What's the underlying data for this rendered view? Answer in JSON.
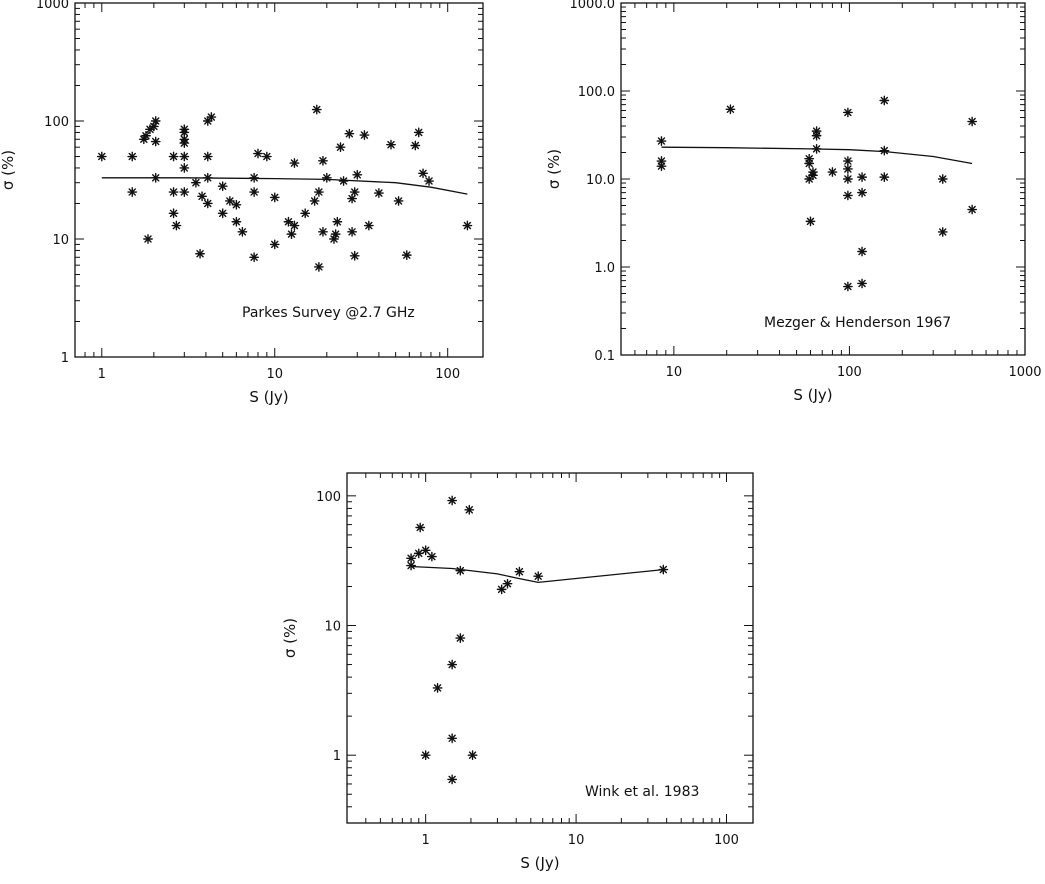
{
  "chart_data": [
    {
      "type": "scatter",
      "xlabel": "S (Jy)",
      "ylabel": "σ (%)",
      "xscale": "log",
      "yscale": "log",
      "xlim": [
        0.7,
        160
      ],
      "ylim": [
        1,
        1000
      ],
      "x_ticks": [
        "1",
        "10",
        "100"
      ],
      "y_ticks": [
        "1",
        "10",
        "100",
        "1000"
      ],
      "annotation": "Parkes Survey @2.7 GHz",
      "points": [
        {
          "x": 1.0,
          "y": 50
        },
        {
          "x": 1.5,
          "y": 50
        },
        {
          "x": 1.5,
          "y": 25
        },
        {
          "x": 1.75,
          "y": 70
        },
        {
          "x": 1.8,
          "y": 75
        },
        {
          "x": 1.85,
          "y": 10
        },
        {
          "x": 1.9,
          "y": 85
        },
        {
          "x": 2.0,
          "y": 90
        },
        {
          "x": 2.05,
          "y": 100
        },
        {
          "x": 2.05,
          "y": 67
        },
        {
          "x": 2.05,
          "y": 33
        },
        {
          "x": 2.6,
          "y": 50
        },
        {
          "x": 2.6,
          "y": 25
        },
        {
          "x": 2.6,
          "y": 16.5
        },
        {
          "x": 2.7,
          "y": 13
        },
        {
          "x": 3.0,
          "y": 85
        },
        {
          "x": 3.0,
          "y": 80
        },
        {
          "x": 3.0,
          "y": 70
        },
        {
          "x": 3.0,
          "y": 65
        },
        {
          "x": 3.0,
          "y": 50
        },
        {
          "x": 3.0,
          "y": 40
        },
        {
          "x": 3.0,
          "y": 25
        },
        {
          "x": 3.5,
          "y": 30
        },
        {
          "x": 3.7,
          "y": 7.5
        },
        {
          "x": 3.8,
          "y": 23
        },
        {
          "x": 4.1,
          "y": 100
        },
        {
          "x": 4.3,
          "y": 108
        },
        {
          "x": 4.1,
          "y": 50
        },
        {
          "x": 4.1,
          "y": 33
        },
        {
          "x": 4.1,
          "y": 20
        },
        {
          "x": 5.0,
          "y": 28
        },
        {
          "x": 5.0,
          "y": 16.5
        },
        {
          "x": 5.5,
          "y": 21
        },
        {
          "x": 6.0,
          "y": 19.5
        },
        {
          "x": 6.0,
          "y": 14
        },
        {
          "x": 6.5,
          "y": 11.5
        },
        {
          "x": 7.6,
          "y": 7
        },
        {
          "x": 7.6,
          "y": 33
        },
        {
          "x": 7.6,
          "y": 25
        },
        {
          "x": 8.0,
          "y": 53
        },
        {
          "x": 9.0,
          "y": 50
        },
        {
          "x": 10.0,
          "y": 22.5
        },
        {
          "x": 10.0,
          "y": 9
        },
        {
          "x": 12.0,
          "y": 14
        },
        {
          "x": 12.5,
          "y": 11
        },
        {
          "x": 13.0,
          "y": 44
        },
        {
          "x": 13.0,
          "y": 13
        },
        {
          "x": 15.0,
          "y": 16.5
        },
        {
          "x": 17.0,
          "y": 21
        },
        {
          "x": 17.5,
          "y": 125
        },
        {
          "x": 18.0,
          "y": 25
        },
        {
          "x": 18.0,
          "y": 5.8
        },
        {
          "x": 19.0,
          "y": 46
        },
        {
          "x": 19.0,
          "y": 11.5
        },
        {
          "x": 20.0,
          "y": 33
        },
        {
          "x": 22.0,
          "y": 10
        },
        {
          "x": 22.5,
          "y": 11
        },
        {
          "x": 23.0,
          "y": 14
        },
        {
          "x": 24.0,
          "y": 60
        },
        {
          "x": 25.0,
          "y": 31
        },
        {
          "x": 27.0,
          "y": 78
        },
        {
          "x": 28.0,
          "y": 22
        },
        {
          "x": 28.0,
          "y": 11.5
        },
        {
          "x": 29.0,
          "y": 25
        },
        {
          "x": 29.0,
          "y": 7.2
        },
        {
          "x": 30.0,
          "y": 35
        },
        {
          "x": 33.0,
          "y": 76
        },
        {
          "x": 35.0,
          "y": 13
        },
        {
          "x": 40.0,
          "y": 24.5
        },
        {
          "x": 47.0,
          "y": 63
        },
        {
          "x": 52.0,
          "y": 21
        },
        {
          "x": 58.0,
          "y": 7.3
        },
        {
          "x": 65.0,
          "y": 62
        },
        {
          "x": 68.0,
          "y": 80
        },
        {
          "x": 72.0,
          "y": 36
        },
        {
          "x": 78.0,
          "y": 31
        },
        {
          "x": 130.0,
          "y": 13
        }
      ],
      "trend": [
        {
          "x": 1.0,
          "y": 33
        },
        {
          "x": 3.0,
          "y": 33
        },
        {
          "x": 10.0,
          "y": 32.5
        },
        {
          "x": 20.0,
          "y": 32
        },
        {
          "x": 50.0,
          "y": 30
        },
        {
          "x": 80.0,
          "y": 27.5
        },
        {
          "x": 130.0,
          "y": 24
        }
      ]
    },
    {
      "type": "scatter",
      "xlabel": "S (Jy)",
      "ylabel": "σ (%)",
      "xscale": "log",
      "yscale": "log",
      "xlim": [
        5,
        1000
      ],
      "ylim": [
        0.1,
        1000
      ],
      "x_ticks": [
        "10",
        "100",
        "1000"
      ],
      "y_ticks": [
        "0.1",
        "1.0",
        "10.0",
        "100.0",
        "1000.0"
      ],
      "annotation": "Mezger & Henderson 1967",
      "points": [
        {
          "x": 8.5,
          "y": 27
        },
        {
          "x": 8.5,
          "y": 16
        },
        {
          "x": 8.5,
          "y": 14
        },
        {
          "x": 21,
          "y": 62
        },
        {
          "x": 59,
          "y": 17
        },
        {
          "x": 59,
          "y": 15
        },
        {
          "x": 59,
          "y": 10
        },
        {
          "x": 60,
          "y": 3.3
        },
        {
          "x": 62,
          "y": 11
        },
        {
          "x": 62,
          "y": 12
        },
        {
          "x": 65,
          "y": 35
        },
        {
          "x": 65,
          "y": 31
        },
        {
          "x": 65,
          "y": 22
        },
        {
          "x": 80,
          "y": 12
        },
        {
          "x": 98,
          "y": 57
        },
        {
          "x": 98,
          "y": 16
        },
        {
          "x": 98,
          "y": 13
        },
        {
          "x": 98,
          "y": 10
        },
        {
          "x": 98,
          "y": 6.5
        },
        {
          "x": 98,
          "y": 0.6
        },
        {
          "x": 118,
          "y": 10.5
        },
        {
          "x": 118,
          "y": 7
        },
        {
          "x": 118,
          "y": 1.5
        },
        {
          "x": 118,
          "y": 0.65
        },
        {
          "x": 158,
          "y": 78
        },
        {
          "x": 158,
          "y": 21
        },
        {
          "x": 158,
          "y": 10.5
        },
        {
          "x": 340,
          "y": 10
        },
        {
          "x": 340,
          "y": 2.5
        },
        {
          "x": 500,
          "y": 45
        },
        {
          "x": 500,
          "y": 4.5
        }
      ],
      "trend": [
        {
          "x": 8.5,
          "y": 23
        },
        {
          "x": 20,
          "y": 22.7
        },
        {
          "x": 60,
          "y": 22
        },
        {
          "x": 100,
          "y": 21.5
        },
        {
          "x": 160,
          "y": 20.5
        },
        {
          "x": 300,
          "y": 18
        },
        {
          "x": 500,
          "y": 15
        }
      ]
    },
    {
      "type": "scatter",
      "xlabel": "S (Jy)",
      "ylabel": "σ (%)",
      "xscale": "log",
      "yscale": "log",
      "xlim": [
        0.3,
        150
      ],
      "ylim": [
        0.3,
        150
      ],
      "x_ticks": [
        "1",
        "10",
        "100"
      ],
      "y_ticks": [
        "1",
        "10",
        "100"
      ],
      "annotation": "Wink et al. 1983",
      "points": [
        {
          "x": 0.8,
          "y": 33
        },
        {
          "x": 0.8,
          "y": 29
        },
        {
          "x": 0.9,
          "y": 36
        },
        {
          "x": 0.92,
          "y": 57
        },
        {
          "x": 1.0,
          "y": 38
        },
        {
          "x": 1.1,
          "y": 34
        },
        {
          "x": 1.0,
          "y": 1.0
        },
        {
          "x": 1.2,
          "y": 3.3
        },
        {
          "x": 1.5,
          "y": 92
        },
        {
          "x": 1.5,
          "y": 5
        },
        {
          "x": 1.5,
          "y": 1.35
        },
        {
          "x": 1.5,
          "y": 0.65
        },
        {
          "x": 1.7,
          "y": 8
        },
        {
          "x": 1.7,
          "y": 26.5
        },
        {
          "x": 1.95,
          "y": 78
        },
        {
          "x": 2.05,
          "y": 1.0
        },
        {
          "x": 3.2,
          "y": 19
        },
        {
          "x": 3.5,
          "y": 21
        },
        {
          "x": 4.2,
          "y": 26
        },
        {
          "x": 5.6,
          "y": 24
        },
        {
          "x": 38,
          "y": 27
        }
      ],
      "trend": [
        {
          "x": 0.8,
          "y": 28.5
        },
        {
          "x": 1.5,
          "y": 27.5
        },
        {
          "x": 3.0,
          "y": 25
        },
        {
          "x": 4.2,
          "y": 23
        },
        {
          "x": 5.6,
          "y": 21.5
        },
        {
          "x": 38,
          "y": 27
        }
      ]
    }
  ]
}
